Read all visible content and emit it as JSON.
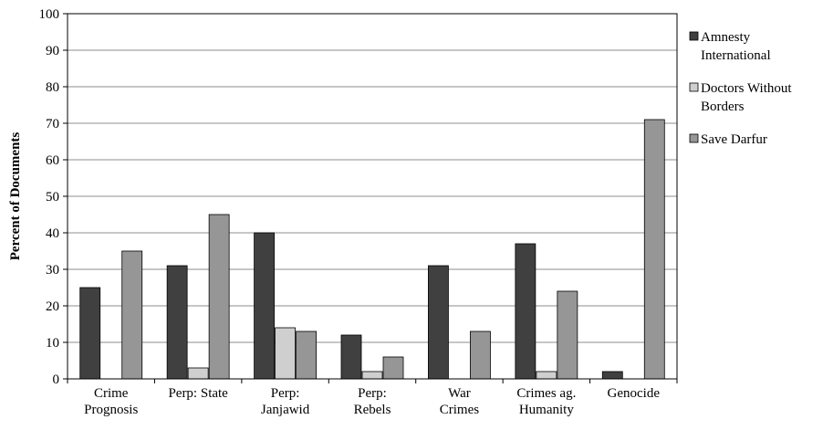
{
  "chart_data": {
    "type": "bar",
    "title": "",
    "xlabel": "",
    "ylabel": "Percent of Documents",
    "ylim": [
      0,
      100
    ],
    "yticks": [
      0,
      10,
      20,
      30,
      40,
      50,
      60,
      70,
      80,
      90,
      100
    ],
    "grid": true,
    "legend_position": "right",
    "categories": [
      [
        "Crime",
        "Prognosis"
      ],
      [
        "Perp: State"
      ],
      [
        "Perp:",
        "Janjawid"
      ],
      [
        "Perp:",
        "Rebels"
      ],
      [
        "War",
        "Crimes"
      ],
      [
        "Crimes ag.",
        "Humanity"
      ],
      [
        "Genocide"
      ]
    ],
    "series": [
      {
        "name": [
          "Amnesty",
          "International"
        ],
        "color": "#404040",
        "values": [
          25,
          31,
          40,
          12,
          31,
          37,
          2
        ]
      },
      {
        "name": [
          "Doctors Without",
          "Borders"
        ],
        "color": "#cfcfcf",
        "values": [
          0,
          3,
          14,
          2,
          0,
          2,
          0
        ]
      },
      {
        "name": [
          "Save Darfur"
        ],
        "color": "#969696",
        "values": [
          35,
          45,
          13,
          6,
          13,
          24,
          71
        ]
      }
    ]
  }
}
